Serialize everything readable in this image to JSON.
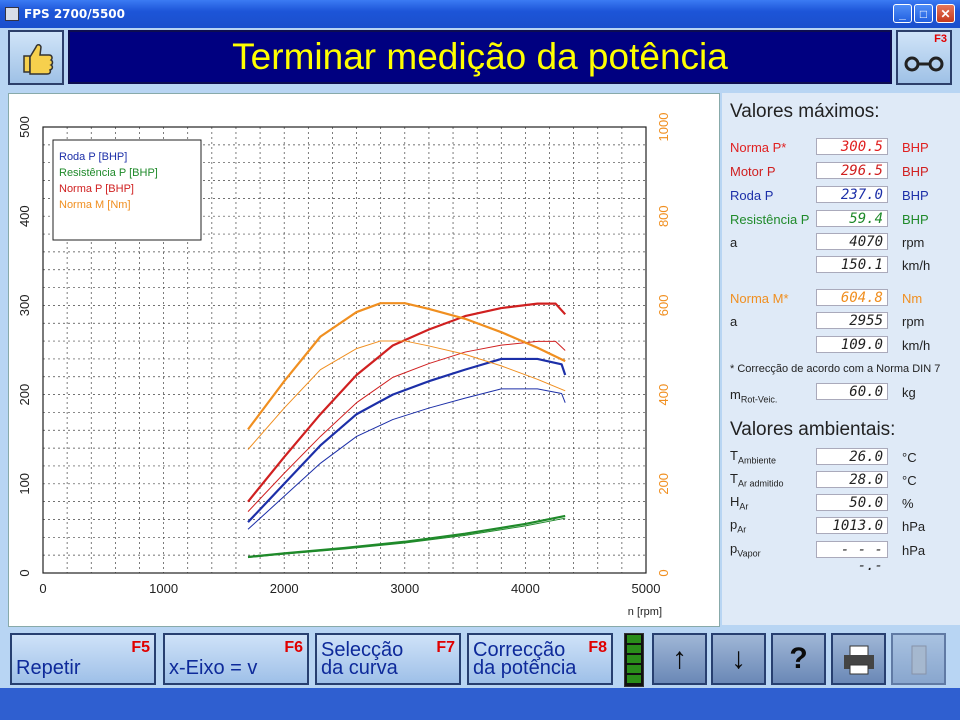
{
  "window": {
    "title": "FPS 2700/5500"
  },
  "header": {
    "title": "Terminar medição da potência",
    "f3_key": "F3"
  },
  "icons": {
    "app": "app-icon",
    "thumb": "thumbs-up-icon",
    "f3": "connection-icon",
    "up": "arrow-up-icon",
    "down": "arrow-down-icon",
    "help": "help-icon",
    "print": "printer-icon",
    "exit": "door-icon"
  },
  "chart_data": {
    "type": "line",
    "xlabel": "n [rpm]",
    "xticks": [
      "0",
      "1000",
      "2000",
      "3000",
      "4000",
      "5000"
    ],
    "yticks_left": [
      "0",
      "100",
      "200",
      "300",
      "400",
      "500"
    ],
    "yticks_right": [
      "0",
      "200",
      "400",
      "600",
      "800",
      "1000"
    ],
    "xlim": [
      0,
      5000
    ],
    "ylim_left": [
      0,
      500
    ],
    "ylim_right": [
      0,
      1000
    ],
    "grid": true,
    "legend_position": "top-left",
    "series": [
      {
        "name": "Roda P [BHP]",
        "color": "#1c2fa8",
        "x": [
          1700,
          2000,
          2300,
          2600,
          2900,
          3200,
          3500,
          3800,
          4100,
          4300,
          4330
        ],
        "y": [
          57,
          100,
          143,
          178,
          200,
          215,
          228,
          240,
          240,
          234,
          222
        ]
      },
      {
        "name": "Resistência P [BHP]",
        "color": "#1f8a2a",
        "x": [
          1700,
          2000,
          2500,
          3000,
          3500,
          4000,
          4330
        ],
        "y": [
          18,
          22,
          28,
          35,
          44,
          55,
          64
        ]
      },
      {
        "name": "Norma P [BHP]",
        "color": "#d02020",
        "x": [
          1700,
          2000,
          2300,
          2600,
          2900,
          3200,
          3500,
          3800,
          4100,
          4250,
          4330
        ],
        "y": [
          80,
          130,
          178,
          222,
          255,
          273,
          288,
          297,
          302,
          302,
          290
        ]
      },
      {
        "name": "Norma M [Nm]",
        "color": "#f08f20",
        "x": [
          1700,
          2000,
          2300,
          2600,
          2800,
          3000,
          3200,
          3500,
          3800,
          4100,
          4330
        ],
        "y": [
          322,
          430,
          530,
          585,
          605,
          605,
          592,
          570,
          540,
          505,
          475
        ]
      }
    ]
  },
  "panel": {
    "max_title": "Valores máximos:",
    "max_rows": [
      {
        "label": "Norma P*",
        "value": "300.5",
        "unit": "BHP",
        "color": "#e02020"
      },
      {
        "label": "Motor P",
        "value": "296.5",
        "unit": "BHP",
        "color": "#d02020"
      },
      {
        "label": "Roda P",
        "value": "237.0",
        "unit": "BHP",
        "color": "#1c2fa8"
      },
      {
        "label": "Resistência P",
        "value": "59.4",
        "unit": "BHP",
        "color": "#1f8a2a"
      },
      {
        "label": "a",
        "value": "4070",
        "unit": "rpm",
        "color": "#222222"
      },
      {
        "label": "",
        "value": "150.1",
        "unit": "km/h",
        "color": "#222222"
      },
      {
        "label": "Norma M*",
        "value": "604.8",
        "unit": "Nm",
        "color": "#f08f20"
      },
      {
        "label": "a",
        "value": "2955",
        "unit": "rpm",
        "color": "#222222"
      },
      {
        "label": "",
        "value": "109.0",
        "unit": "km/h",
        "color": "#222222"
      }
    ],
    "note": "* Correcção de acordo com a Norma DIN 7",
    "mass": {
      "label": "m",
      "sub": "Rot-Veic.",
      "value": "60.0",
      "unit": "kg"
    },
    "amb_title": "Valores ambientais:",
    "amb_rows": [
      {
        "label": "T",
        "sub": "Ambiente",
        "value": "26.0",
        "unit": "°C"
      },
      {
        "label": "T",
        "sub": "Ar admitido",
        "value": "28.0",
        "unit": "°C"
      },
      {
        "label": "H",
        "sub": "Ar",
        "value": "50.0",
        "unit": "%"
      },
      {
        "label": "p",
        "sub": "Ar",
        "value": "1013.0",
        "unit": "hPa"
      },
      {
        "label": "p",
        "sub": "Vapor",
        "value": "- - - -.-",
        "unit": "hPa"
      }
    ]
  },
  "buttons": [
    {
      "key": "F5",
      "label": "Repetir"
    },
    {
      "key": "F6",
      "label": "x-Eixo = v"
    },
    {
      "key": "F7",
      "label": "Selecção\nda curva"
    },
    {
      "key": "F8",
      "label": "Correcção\nda potência"
    }
  ]
}
